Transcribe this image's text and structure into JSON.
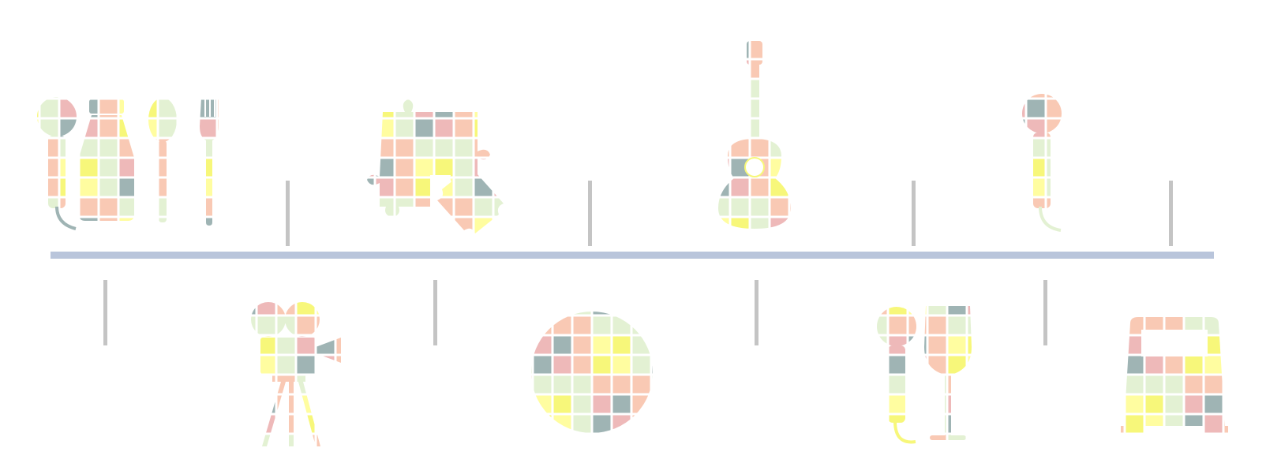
{
  "colors": {
    "timeline": "#b9c5db",
    "tick": "#c4c4c4",
    "mosaic": [
      "#f7f77a",
      "#f9c9b4",
      "#eeb9b9",
      "#9fb4b4",
      "#e3f1d3",
      "#fffda0"
    ]
  },
  "icons_top": [
    "microphone-icon",
    "milk-bottle-icon",
    "spoon-icon",
    "fork-icon",
    "puzzle-icon",
    "guitar-icon",
    "microphone-icon"
  ],
  "icons_bottom": [
    "film-camera-icon",
    "disco-ball-icon",
    "microphone-icon",
    "wine-glass-icon",
    "bus-icon"
  ]
}
